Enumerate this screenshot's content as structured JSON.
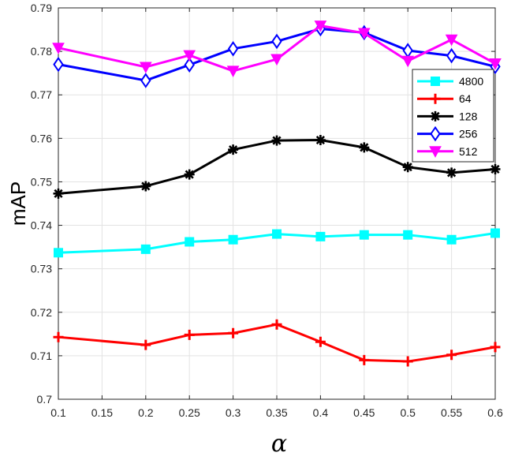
{
  "chart_data": {
    "type": "line",
    "title": "",
    "xlabel": "α",
    "ylabel": "mAP",
    "x": [
      0.1,
      0.2,
      0.25,
      0.3,
      0.35,
      0.4,
      0.45,
      0.5,
      0.55,
      0.6
    ],
    "x_tick_labels": [
      "0.1",
      "0.15",
      "0.2",
      "0.25",
      "0.3",
      "0.35",
      "0.4",
      "0.45",
      "0.5",
      "0.55",
      "0.6"
    ],
    "y_ticks": [
      "0.7",
      "0.71",
      "0.72",
      "0.73",
      "0.74",
      "0.75",
      "0.76",
      "0.77",
      "0.78",
      "0.79"
    ],
    "ylim": [
      0.7,
      0.79
    ],
    "grid": true,
    "legend_position": "right",
    "series": [
      {
        "name": "4800",
        "color": "#00ffff",
        "marker": "square",
        "values": [
          0.7337,
          0.7345,
          0.7362,
          0.7367,
          0.738,
          0.7374,
          0.7378,
          0.7378,
          0.7367,
          0.7382
        ]
      },
      {
        "name": "64",
        "color": "#ff0000",
        "marker": "plus",
        "values": [
          0.7143,
          0.7125,
          0.7148,
          0.7152,
          0.7172,
          0.7132,
          0.709,
          0.7087,
          0.7102,
          0.712
        ]
      },
      {
        "name": "128",
        "color": "#000000",
        "marker": "asterisk",
        "values": [
          0.7473,
          0.749,
          0.7517,
          0.7574,
          0.7595,
          0.7596,
          0.7579,
          0.7534,
          0.7521,
          0.7529
        ]
      },
      {
        "name": "256",
        "color": "#0000ff",
        "marker": "diamond",
        "values": [
          0.777,
          0.7733,
          0.7769,
          0.7806,
          0.7823,
          0.7852,
          0.7843,
          0.7802,
          0.779,
          0.7765
        ]
      },
      {
        "name": "512",
        "color": "#ff00ff",
        "marker": "triangle-down",
        "values": [
          0.7808,
          0.7764,
          0.7791,
          0.7755,
          0.7782,
          0.7859,
          0.7842,
          0.7778,
          0.7827,
          0.7772
        ]
      }
    ]
  }
}
